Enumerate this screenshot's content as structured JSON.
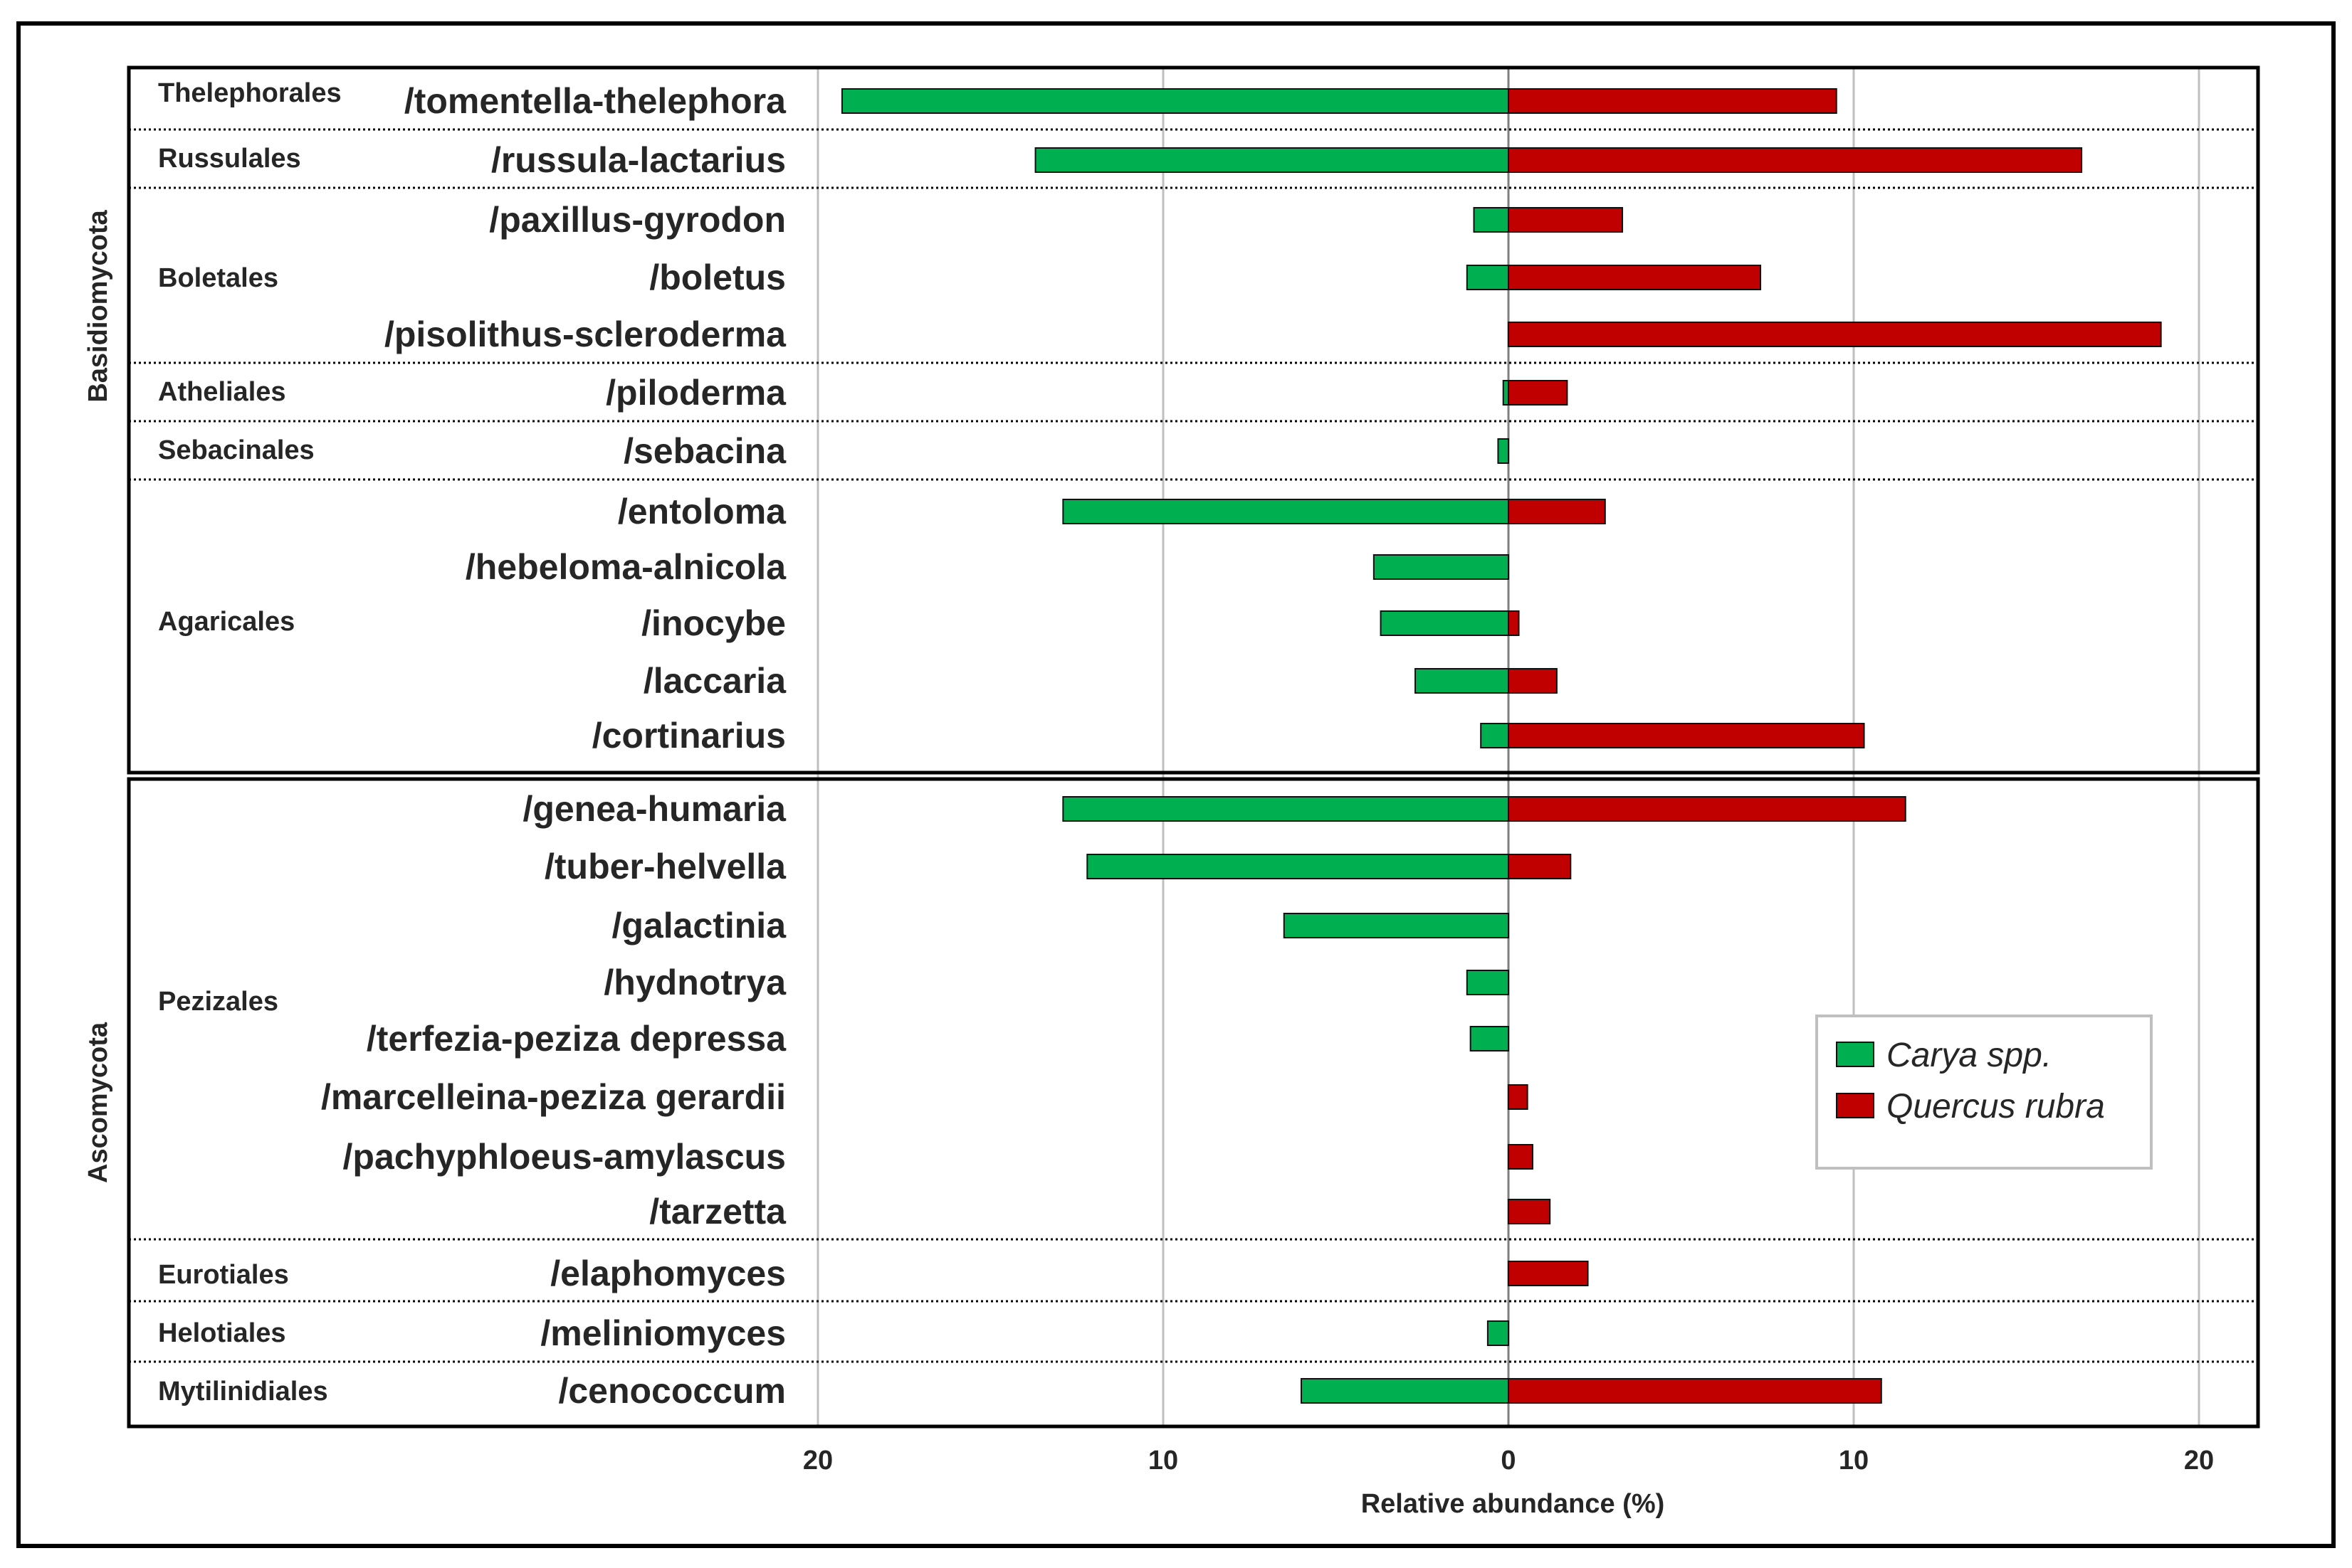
{
  "chart_data": {
    "type": "bar",
    "orientation": "horizontal-diverging",
    "xlabel": "Relative abundance (%)",
    "x_ticks": [
      "20",
      "10",
      "0",
      "10",
      "20"
    ],
    "xlim": [
      -20,
      20
    ],
    "grid": true,
    "legend_position": "right",
    "series": [
      {
        "name": "Carya spp.",
        "color": "#00b050",
        "direction": "left"
      },
      {
        "name": "Quercus rubra",
        "color": "#c00000",
        "direction": "right"
      }
    ],
    "groups": [
      {
        "phylum": "Basidiomycota",
        "orders": [
          {
            "name": "Thelephorales",
            "lineages": [
              {
                "name": "/tomentella-thelephora",
                "carya": 19.3,
                "quercus": 9.5
              }
            ]
          },
          {
            "name": "Russulales",
            "lineages": [
              {
                "name": "/russula-lactarius",
                "carya": 13.7,
                "quercus": 16.6
              }
            ]
          },
          {
            "name": "Boletales",
            "lineages": [
              {
                "name": "/paxillus-gyrodon",
                "carya": 1.0,
                "quercus": 3.3
              },
              {
                "name": "/boletus",
                "carya": 1.2,
                "quercus": 7.3
              },
              {
                "name": "/pisolithus-scleroderma",
                "carya": 0.0,
                "quercus": 18.9
              }
            ]
          },
          {
            "name": "Atheliales",
            "lineages": [
              {
                "name": "/piloderma",
                "carya": 0.15,
                "quercus": 1.7
              }
            ]
          },
          {
            "name": "Sebacinales",
            "lineages": [
              {
                "name": "/sebacina",
                "carya": 0.3,
                "quercus": 0.0
              }
            ]
          },
          {
            "name": "Agaricales",
            "lineages": [
              {
                "name": "/entoloma",
                "carya": 12.9,
                "quercus": 2.8
              },
              {
                "name": "/hebeloma-alnicola",
                "carya": 3.9,
                "quercus": 0.0
              },
              {
                "name": "/inocybe",
                "carya": 3.7,
                "quercus": 0.3
              },
              {
                "name": "/laccaria",
                "carya": 2.7,
                "quercus": 1.4
              },
              {
                "name": "/cortinarius",
                "carya": 0.8,
                "quercus": 10.3
              }
            ]
          }
        ]
      },
      {
        "phylum": "Ascomycota",
        "orders": [
          {
            "name": "Pezizales",
            "lineages": [
              {
                "name": "/genea-humaria",
                "carya": 12.9,
                "quercus": 11.5
              },
              {
                "name": "/tuber-helvella",
                "carya": 12.2,
                "quercus": 1.8
              },
              {
                "name": "/galactinia",
                "carya": 6.5,
                "quercus": 0.0
              },
              {
                "name": "/hydnotrya",
                "carya": 1.2,
                "quercus": 0.0
              },
              {
                "name": "/terfezia-peziza depressa",
                "carya": 1.1,
                "quercus": 0.0
              },
              {
                "name": "/marcelleina-peziza gerardii",
                "carya": 0.0,
                "quercus": 0.55
              },
              {
                "name": "/pachyphloeus-amylascus",
                "carya": 0.0,
                "quercus": 0.7
              },
              {
                "name": "/tarzetta",
                "carya": 0.0,
                "quercus": 1.2
              }
            ]
          },
          {
            "name": "Eurotiales",
            "lineages": [
              {
                "name": "/elaphomyces",
                "carya": 0.0,
                "quercus": 2.3
              }
            ]
          },
          {
            "name": "Helotiales",
            "lineages": [
              {
                "name": "/meliniomyces",
                "carya": 0.6,
                "quercus": 0.0
              }
            ]
          },
          {
            "name": "Mytilinidiales",
            "lineages": [
              {
                "name": "/cenococcum",
                "carya": 6.0,
                "quercus": 10.8
              }
            ]
          }
        ]
      }
    ]
  }
}
